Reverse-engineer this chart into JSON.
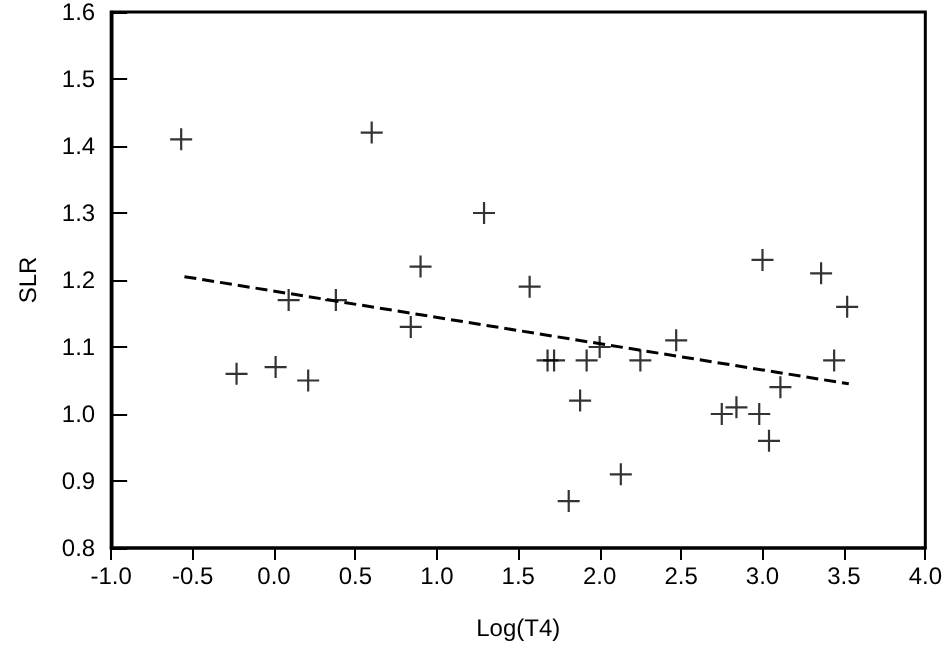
{
  "chart_data": {
    "type": "scatter",
    "xlabel": "Log(T4)",
    "ylabel": "SLR",
    "grid": false,
    "marker": "cross",
    "xlim": [
      -1.0,
      4.0
    ],
    "ylim": [
      0.8,
      1.6
    ],
    "xticks": [
      {
        "value": -1.0,
        "label": "-1.0"
      },
      {
        "value": -0.5,
        "label": "-0.5"
      },
      {
        "value": 0,
        "label": "0.0"
      },
      {
        "value": 0.5,
        "label": "0.5"
      },
      {
        "value": 1,
        "label": "1.0"
      },
      {
        "value": 1.5,
        "label": "1.5"
      },
      {
        "value": 2,
        "label": "2.0"
      },
      {
        "value": 2.5,
        "label": "2.5"
      },
      {
        "value": 3,
        "label": "3.0"
      },
      {
        "value": 3.5,
        "label": "3.5"
      },
      {
        "value": 4,
        "label": "4.0"
      }
    ],
    "yticks": [
      {
        "value": 0.8,
        "label": "0.8"
      },
      {
        "value": 0.9,
        "label": "0.9"
      },
      {
        "value": 1.0,
        "label": "1.0"
      },
      {
        "value": 1.1,
        "label": "1.1"
      },
      {
        "value": 1.2,
        "label": "1.2"
      },
      {
        "value": 1.3,
        "label": "1.3"
      },
      {
        "value": 1.4,
        "label": "1.4"
      },
      {
        "value": 1.5,
        "label": "1.5"
      },
      {
        "value": 1.6,
        "label": "1.6"
      }
    ],
    "series": [
      {
        "color": "#000000",
        "x": [
          -0.57,
          0.6,
          1.29,
          0.9,
          0.09,
          0.38,
          0.84,
          -0.23,
          0.01,
          0.21,
          1.57,
          3.0,
          3.36,
          3.52,
          2.47,
          1.68,
          1.72,
          1.92,
          2.0,
          2.25,
          1.88,
          1.81,
          2.13,
          2.75,
          2.84,
          2.98,
          3.04,
          3.11,
          3.44
        ],
        "values": [
          1.41,
          1.42,
          1.3,
          1.22,
          1.17,
          1.17,
          1.13,
          1.06,
          1.07,
          1.05,
          1.19,
          1.23,
          1.21,
          1.16,
          1.11,
          1.08,
          1.08,
          1.08,
          1.1,
          1.08,
          1.02,
          0.87,
          0.91,
          1.0,
          1.01,
          1.0,
          0.96,
          1.04,
          1.08
        ]
      },
      {
        "type": "line",
        "color": "#000000",
        "marker": "none",
        "line_style": "dashed",
        "x": [
          -0.55,
          3.53
        ],
        "values": [
          1.205,
          1.045
        ]
      }
    ]
  }
}
